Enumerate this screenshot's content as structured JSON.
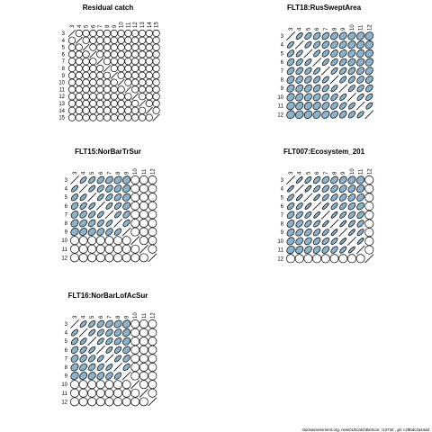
{
  "chart_data": [
    {
      "type": "heatmap",
      "title": "Residual catch",
      "ages": [
        "3",
        "4",
        "5",
        "6",
        "7",
        "8",
        "9",
        "10",
        "11",
        "12",
        "13",
        "14",
        "15"
      ],
      "correlations": [
        [
          1.0,
          0.0,
          0.0,
          0.0,
          0.0,
          0.0,
          0.0,
          0.0,
          0.0,
          0.0,
          0.0,
          0.0,
          0.0
        ],
        [
          0.0,
          1.0,
          0.0,
          0.0,
          0.0,
          0.0,
          0.0,
          0.0,
          0.0,
          0.0,
          0.0,
          0.0,
          0.0
        ],
        [
          0.0,
          0.0,
          1.0,
          0.0,
          0.0,
          0.0,
          0.0,
          0.0,
          0.0,
          0.0,
          0.0,
          0.0,
          0.0
        ],
        [
          0.0,
          0.0,
          0.0,
          1.0,
          0.0,
          0.0,
          0.0,
          0.0,
          0.0,
          0.0,
          0.0,
          0.0,
          0.0
        ],
        [
          0.0,
          0.0,
          0.0,
          0.0,
          1.0,
          0.0,
          0.0,
          0.0,
          0.0,
          0.0,
          0.0,
          0.0,
          0.0
        ],
        [
          0.0,
          0.0,
          0.0,
          0.0,
          0.0,
          1.0,
          0.0,
          0.0,
          0.0,
          0.0,
          0.0,
          0.0,
          0.0
        ],
        [
          0.0,
          0.0,
          0.0,
          0.0,
          0.0,
          0.0,
          1.0,
          0.0,
          0.0,
          0.0,
          0.0,
          0.0,
          0.0
        ],
        [
          0.0,
          0.0,
          0.0,
          0.0,
          0.0,
          0.0,
          0.0,
          1.0,
          0.0,
          0.0,
          0.0,
          0.0,
          0.0
        ],
        [
          0.0,
          0.0,
          0.0,
          0.0,
          0.0,
          0.0,
          0.0,
          0.0,
          1.0,
          0.0,
          0.0,
          0.0,
          0.0
        ],
        [
          0.0,
          0.0,
          0.0,
          0.0,
          0.0,
          0.0,
          0.0,
          0.0,
          0.0,
          1.0,
          0.0,
          0.0,
          0.0
        ],
        [
          0.0,
          0.0,
          0.0,
          0.0,
          0.0,
          0.0,
          0.0,
          0.0,
          0.0,
          0.0,
          1.0,
          0.0,
          0.0
        ],
        [
          0.0,
          0.0,
          0.0,
          0.0,
          0.0,
          0.0,
          0.0,
          0.0,
          0.0,
          0.0,
          0.0,
          1.0,
          0.0
        ],
        [
          0.0,
          0.0,
          0.0,
          0.0,
          0.0,
          0.0,
          0.0,
          0.0,
          0.0,
          0.0,
          0.0,
          0.0,
          1.0
        ]
      ]
    },
    {
      "type": "heatmap",
      "title": "FLT18:RusSweptArea",
      "ages": [
        "3",
        "4",
        "5",
        "6",
        "7",
        "8",
        "9",
        "10",
        "11",
        "12"
      ],
      "correlations": [
        [
          1.0,
          0.8,
          0.7,
          0.6,
          0.6,
          0.5,
          0.45,
          0.4,
          0.3,
          0.2
        ],
        [
          0.8,
          1.0,
          0.8,
          0.7,
          0.6,
          0.55,
          0.5,
          0.4,
          0.35,
          0.25
        ],
        [
          0.7,
          0.8,
          1.0,
          0.8,
          0.7,
          0.6,
          0.5,
          0.45,
          0.4,
          0.3
        ],
        [
          0.6,
          0.7,
          0.8,
          1.0,
          0.8,
          0.7,
          0.6,
          0.5,
          0.4,
          0.35
        ],
        [
          0.6,
          0.6,
          0.7,
          0.8,
          1.0,
          0.8,
          0.7,
          0.6,
          0.5,
          0.4
        ],
        [
          0.5,
          0.55,
          0.6,
          0.7,
          0.8,
          1.0,
          0.8,
          0.7,
          0.6,
          0.5
        ],
        [
          0.45,
          0.5,
          0.5,
          0.6,
          0.7,
          0.8,
          1.0,
          0.8,
          0.7,
          0.6
        ],
        [
          0.4,
          0.4,
          0.45,
          0.5,
          0.6,
          0.7,
          0.8,
          1.0,
          0.8,
          0.7
        ],
        [
          0.3,
          0.35,
          0.4,
          0.4,
          0.5,
          0.6,
          0.7,
          0.8,
          1.0,
          0.8
        ],
        [
          0.2,
          0.25,
          0.3,
          0.35,
          0.4,
          0.5,
          0.6,
          0.7,
          0.8,
          1.0
        ]
      ]
    },
    {
      "type": "heatmap",
      "title": "FLT15:NorBarTrSur",
      "ages": [
        "3",
        "4",
        "5",
        "6",
        "7",
        "8",
        "9",
        "10",
        "11",
        "12"
      ],
      "correlations": [
        [
          1.0,
          0.8,
          0.7,
          0.6,
          0.5,
          0.4,
          0.3,
          0.0,
          0.0,
          0.0
        ],
        [
          0.8,
          1.0,
          0.8,
          0.7,
          0.6,
          0.5,
          0.4,
          0.0,
          0.0,
          0.0
        ],
        [
          0.7,
          0.8,
          1.0,
          0.8,
          0.7,
          0.6,
          0.4,
          0.0,
          0.0,
          0.0
        ],
        [
          0.6,
          0.7,
          0.8,
          1.0,
          0.8,
          0.7,
          0.5,
          0.0,
          0.0,
          0.0
        ],
        [
          0.5,
          0.6,
          0.7,
          0.8,
          1.0,
          0.8,
          0.6,
          0.0,
          0.0,
          0.0
        ],
        [
          0.4,
          0.5,
          0.6,
          0.7,
          0.8,
          1.0,
          0.7,
          0.0,
          0.0,
          0.0
        ],
        [
          0.3,
          0.4,
          0.4,
          0.5,
          0.6,
          0.7,
          1.0,
          0.0,
          0.0,
          0.0
        ],
        [
          0.0,
          0.0,
          0.0,
          0.0,
          0.0,
          0.0,
          0.0,
          1.0,
          0.0,
          0.0
        ],
        [
          0.0,
          0.0,
          0.0,
          0.0,
          0.0,
          0.0,
          0.0,
          0.0,
          1.0,
          0.0
        ],
        [
          0.0,
          0.0,
          0.0,
          0.0,
          0.0,
          0.0,
          0.0,
          0.0,
          0.0,
          1.0
        ]
      ]
    },
    {
      "type": "heatmap",
      "title": "FLT007:Ecosystem_201",
      "ages": [
        "3",
        "4",
        "5",
        "6",
        "7",
        "8",
        "9",
        "10",
        "11",
        "12"
      ],
      "correlations": [
        [
          1.0,
          0.9,
          0.8,
          0.7,
          0.6,
          0.55,
          0.5,
          0.4,
          0.3,
          0.0
        ],
        [
          0.9,
          1.0,
          0.9,
          0.8,
          0.7,
          0.6,
          0.55,
          0.5,
          0.4,
          0.0
        ],
        [
          0.8,
          0.9,
          1.0,
          0.9,
          0.8,
          0.7,
          0.6,
          0.55,
          0.5,
          0.0
        ],
        [
          0.7,
          0.8,
          0.9,
          1.0,
          0.9,
          0.8,
          0.7,
          0.6,
          0.55,
          0.0
        ],
        [
          0.6,
          0.7,
          0.8,
          0.9,
          1.0,
          0.9,
          0.8,
          0.7,
          0.6,
          0.0
        ],
        [
          0.55,
          0.6,
          0.7,
          0.8,
          0.9,
          1.0,
          0.9,
          0.8,
          0.7,
          0.0
        ],
        [
          0.5,
          0.55,
          0.6,
          0.7,
          0.8,
          0.9,
          1.0,
          0.9,
          0.8,
          0.0
        ],
        [
          0.4,
          0.5,
          0.55,
          0.6,
          0.7,
          0.8,
          0.9,
          1.0,
          0.9,
          0.0
        ],
        [
          0.3,
          0.4,
          0.5,
          0.55,
          0.6,
          0.7,
          0.8,
          0.9,
          1.0,
          0.0
        ],
        [
          0.0,
          0.0,
          0.0,
          0.0,
          0.0,
          0.0,
          0.0,
          0.0,
          0.0,
          1.0
        ]
      ]
    },
    {
      "type": "heatmap",
      "title": "FLT16:NorBarLofAcSur",
      "ages": [
        "3",
        "4",
        "5",
        "6",
        "7",
        "8",
        "9",
        "10",
        "11",
        "12"
      ],
      "correlations": [
        [
          1.0,
          0.8,
          0.7,
          0.6,
          0.5,
          0.4,
          0.3,
          0.0,
          0.0,
          0.0
        ],
        [
          0.8,
          1.0,
          0.8,
          0.7,
          0.6,
          0.5,
          0.4,
          0.0,
          0.0,
          0.0
        ],
        [
          0.7,
          0.8,
          1.0,
          0.8,
          0.7,
          0.6,
          0.4,
          0.0,
          0.0,
          0.0
        ],
        [
          0.6,
          0.7,
          0.8,
          1.0,
          0.8,
          0.7,
          0.5,
          0.0,
          0.0,
          0.0
        ],
        [
          0.5,
          0.6,
          0.7,
          0.8,
          1.0,
          0.8,
          0.6,
          0.0,
          0.0,
          0.0
        ],
        [
          0.4,
          0.5,
          0.6,
          0.7,
          0.8,
          1.0,
          0.7,
          0.0,
          0.0,
          0.0
        ],
        [
          0.3,
          0.4,
          0.4,
          0.5,
          0.6,
          0.7,
          1.0,
          0.0,
          0.0,
          0.0
        ],
        [
          0.0,
          0.0,
          0.0,
          0.0,
          0.0,
          0.0,
          0.0,
          1.0,
          0.0,
          0.0
        ],
        [
          0.0,
          0.0,
          0.0,
          0.0,
          0.0,
          0.0,
          0.0,
          0.0,
          1.0,
          0.0
        ],
        [
          0.0,
          0.0,
          0.0,
          0.0,
          0.0,
          0.0,
          0.0,
          0.0,
          0.0,
          1.0
        ]
      ]
    }
  ],
  "colors": {
    "ellipse_fill": "#8bb3cc",
    "stroke": "#000000",
    "background": "#ffffff"
  },
  "footer": "stockassessment.org, newOLDcatchBestcor, r13732 , git: c28bdc2a44ad"
}
